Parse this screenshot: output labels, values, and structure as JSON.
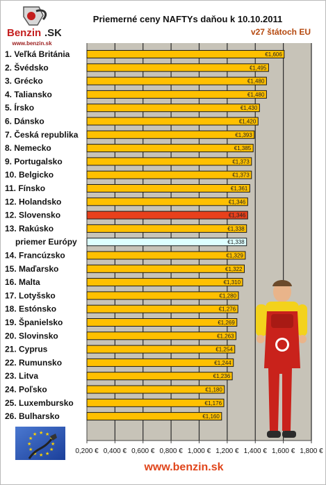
{
  "branding": {
    "logo_text": "Benzin.SK",
    "logo_url": "www.benzin.sk",
    "footer_url": "www.benzin.sk"
  },
  "colors": {
    "plot_bg": "#c7c3b8",
    "bar": "#ffc000",
    "bar_highlight": "#e8401c",
    "bar_average": "#ddffff",
    "label_highlight": "#c5401b",
    "label_average": "#3fa3d8"
  },
  "chart_data": {
    "type": "bar",
    "orientation": "horizontal",
    "title": "Priemerné ceny NAFTYs daňou k 10.10.2011",
    "subtitle": "v27 štátoch EU",
    "categories": [
      "1. Veľká Británia",
      "2. Švédsko",
      "3. Grécko",
      "4. Taliansko",
      "5. Írsko",
      "6. Dánsko",
      "7. Česká republika",
      "8. Nemecko",
      "9. Portugalsko",
      "10. Belgicko",
      "11. Fínsko",
      "12. Holandsko",
      "12. Slovensko",
      "13. Rakúsko",
      "priemer Európy",
      "14. Francúzsko",
      "15. Maďarsko",
      "16. Malta",
      "17. Lotyšsko",
      "18. Estónsko",
      "19. Španielsko",
      "20. Slovinsko",
      "21. Cyprus",
      "22. Rumunsko",
      "23. Litva",
      "24. Poľsko",
      "25. Luxembursko",
      "26. Bulharsko"
    ],
    "values": [
      1.606,
      1.495,
      1.48,
      1.48,
      1.43,
      1.42,
      1.393,
      1.385,
      1.373,
      1.373,
      1.361,
      1.346,
      1.346,
      1.338,
      1.338,
      1.329,
      1.322,
      1.31,
      1.28,
      1.276,
      1.269,
      1.263,
      1.254,
      1.244,
      1.236,
      1.18,
      1.176,
      1.16
    ],
    "value_labels": [
      "€1,606",
      "€1,495",
      "€1,480",
      "€1,480",
      "€1,430",
      "€1,420",
      "€1,393",
      "€1,385",
      "€1,373",
      "€1,373",
      "€1,361",
      "€1,346",
      "€1,346",
      "€1,338",
      "€1,338",
      "€1,329",
      "€1,322",
      "€1,310",
      "€1,280",
      "€1,276",
      "€1,269",
      "€1,263",
      "€1,254",
      "€1,244",
      "€1,236",
      "€1,180",
      "€1,176",
      "€1,160"
    ],
    "highlight_index": 12,
    "average_index": 14,
    "xlim": [
      0.2,
      1.8
    ],
    "x_ticks": [
      0.2,
      0.4,
      0.6,
      0.8,
      1.0,
      1.2,
      1.4,
      1.6,
      1.8
    ],
    "x_tick_labels": [
      "0,200 €",
      "0,400 €",
      "0,600 €",
      "0,800 €",
      "1,000 €",
      "1,200 €",
      "1,400 €",
      "1,600 €",
      "1,800 €"
    ],
    "grid": true,
    "xlabel": "",
    "ylabel": ""
  }
}
